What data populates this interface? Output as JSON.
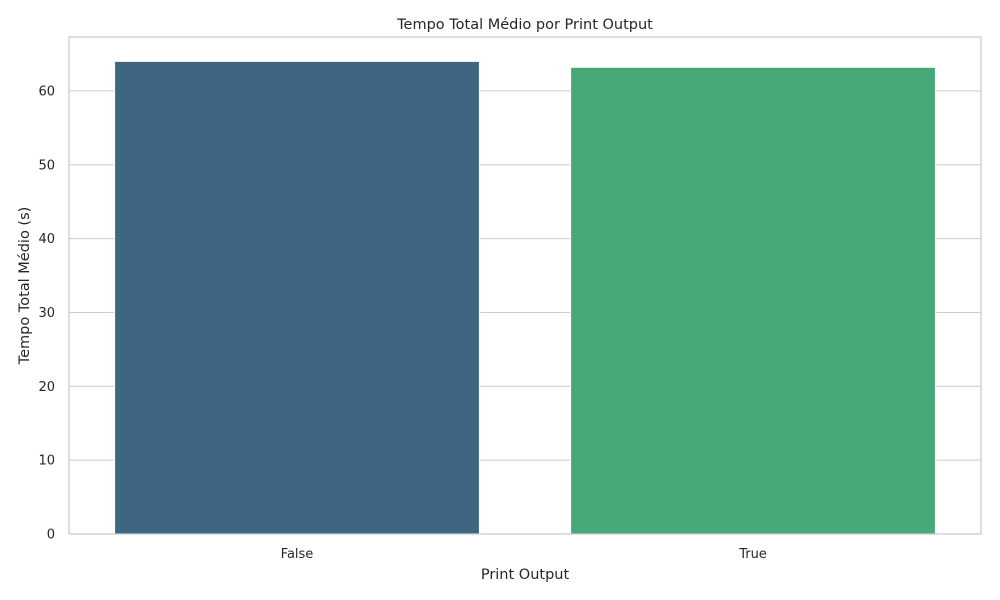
{
  "chart_data": {
    "type": "bar",
    "title": "Tempo Total Médio por Print Output",
    "xlabel": "Print Output",
    "ylabel": "Tempo Total Médio (s)",
    "categories": [
      "False",
      "True"
    ],
    "values": [
      64.0,
      63.2
    ],
    "colors": [
      "#3e6683",
      "#47a878"
    ],
    "ylim": [
      0,
      67.3
    ],
    "yticks": [
      0,
      10,
      20,
      30,
      40,
      50,
      60
    ],
    "grid": "y",
    "legend": "none"
  }
}
